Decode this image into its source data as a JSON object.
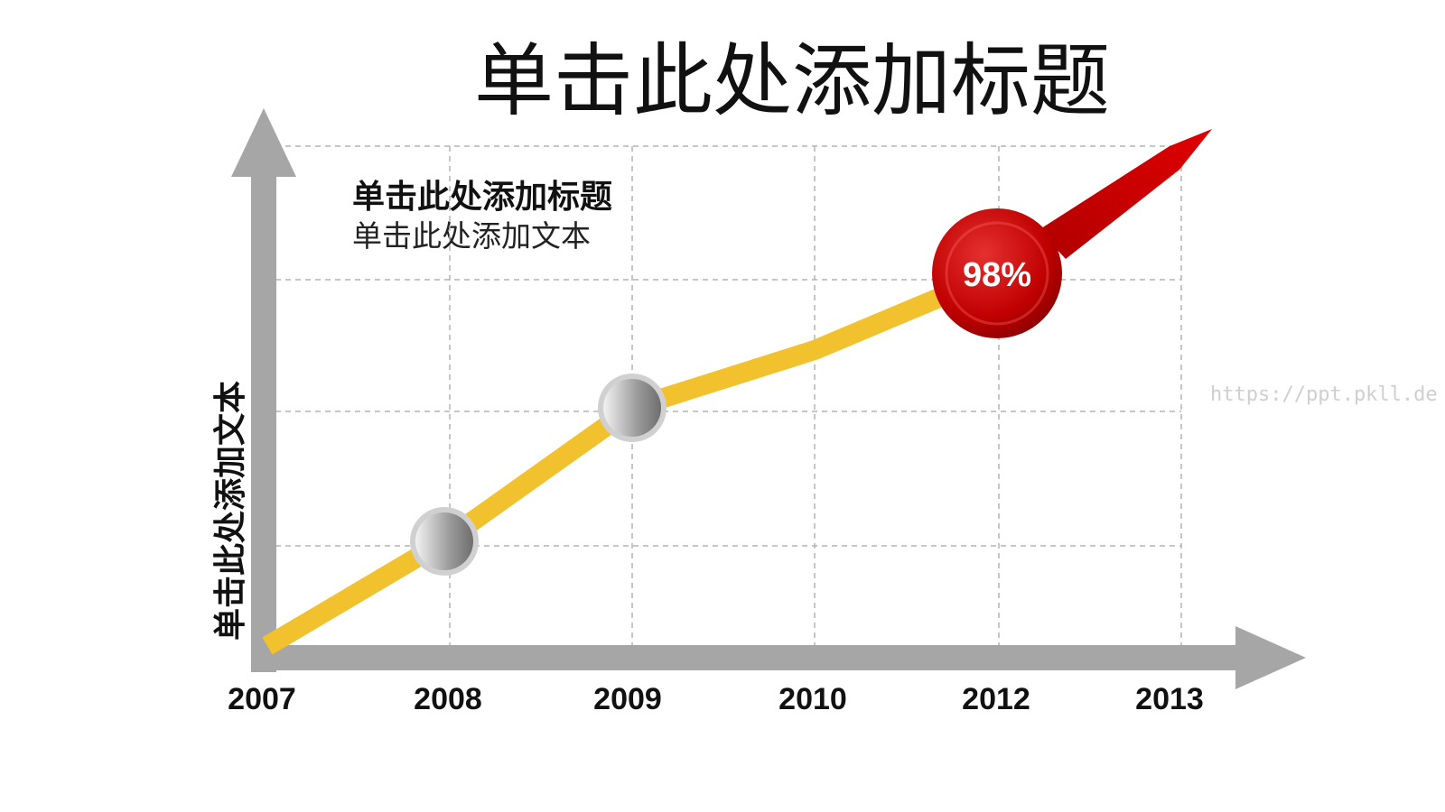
{
  "slide": {
    "title": "单击此处添加标题",
    "text_title": "单击此处添加标题",
    "text_body": "单击此处添加文本",
    "y_axis_label": "单击此处添加文本",
    "watermark": "https://ppt.pkll.de"
  },
  "chart_data": {
    "type": "line",
    "categories": [
      "2007",
      "2008",
      "2009",
      "2010",
      "2012",
      "2013"
    ],
    "series": [
      {
        "values": [
          0,
          1,
          2,
          2.5,
          3,
          4
        ]
      }
    ],
    "highlight": {
      "category": "2012",
      "label": "98%"
    },
    "grid": true,
    "colors": {
      "line": "#f2c12e",
      "arrow": "#cc0000",
      "axis": "#a6a6a6",
      "grid": "#b3b3b3",
      "marker": "#9a9a9a",
      "badge": "#c00000"
    }
  }
}
